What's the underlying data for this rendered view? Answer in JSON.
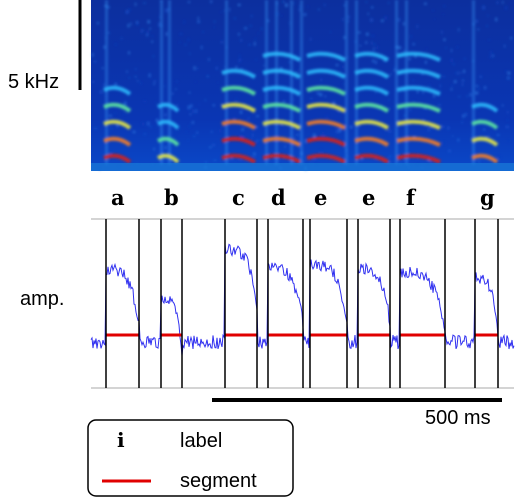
{
  "spectrogram": {
    "scale_label": "5 kHz",
    "syllable_labels": [
      "a",
      "b",
      "c",
      "d",
      "e",
      "e",
      "f",
      "g"
    ]
  },
  "amplitude": {
    "axis_label": "amp."
  },
  "time_scale": {
    "label": "500 ms"
  },
  "legend": {
    "items": [
      {
        "symbol": "i",
        "text": "label"
      },
      {
        "symbol": "red-line",
        "text": "segment",
        "color": "#e00000"
      }
    ]
  },
  "colors": {
    "spectrogram_background": "#0a2a9a",
    "segment_line": "#e00000",
    "amplitude_trace": "#3a3aff",
    "boundary_lines": "#000000"
  }
}
